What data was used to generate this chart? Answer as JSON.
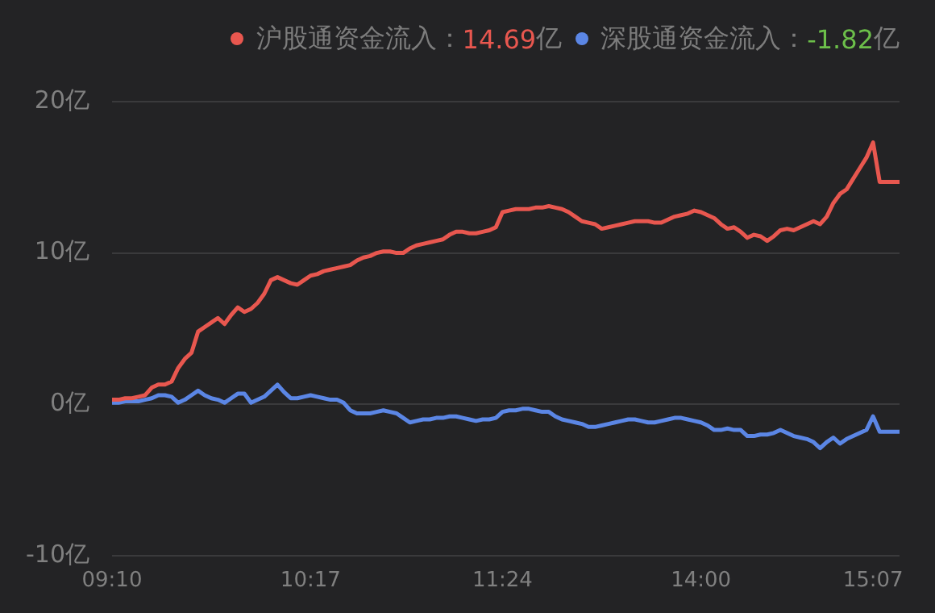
{
  "chart_data": {
    "type": "line",
    "categories": [
      "09:10",
      null,
      null,
      null,
      null,
      null,
      null,
      null,
      null,
      null,
      null,
      null,
      null,
      null,
      null,
      null,
      null,
      null,
      null,
      null,
      null,
      null,
      null,
      null,
      null,
      null,
      null,
      null,
      null,
      null,
      "10:17",
      null,
      null,
      null,
      null,
      null,
      null,
      null,
      null,
      null,
      null,
      null,
      null,
      null,
      null,
      null,
      null,
      null,
      null,
      null,
      null,
      null,
      null,
      null,
      null,
      null,
      null,
      null,
      null,
      "11:24",
      null,
      null,
      null,
      null,
      null,
      null,
      null,
      null,
      null,
      null,
      null,
      null,
      null,
      null,
      null,
      null,
      null,
      null,
      null,
      null,
      null,
      null,
      null,
      null,
      null,
      null,
      null,
      null,
      null,
      "14:00",
      null,
      null,
      null,
      null,
      null,
      null,
      null,
      null,
      null,
      null,
      null,
      null,
      null,
      null,
      null,
      null,
      null,
      null,
      null,
      null,
      null,
      null,
      null,
      null,
      null,
      "15:07",
      null,
      null,
      null,
      null
    ],
    "series": [
      {
        "name": "沪股通资金流入：",
        "color": "#e8574f",
        "values": [
          0.3,
          0.3,
          0.4,
          0.4,
          0.5,
          0.6,
          1.1,
          1.3,
          1.3,
          1.5,
          2.4,
          3.0,
          3.4,
          4.8,
          5.1,
          5.4,
          5.7,
          5.3,
          5.9,
          6.4,
          6.1,
          6.3,
          6.7,
          7.3,
          8.2,
          8.4,
          8.2,
          8.0,
          7.9,
          8.2,
          8.5,
          8.6,
          8.8,
          8.9,
          9.0,
          9.1,
          9.2,
          9.5,
          9.7,
          9.8,
          10.0,
          10.1,
          10.1,
          10.0,
          10.0,
          10.3,
          10.5,
          10.6,
          10.7,
          10.8,
          10.9,
          11.2,
          11.4,
          11.4,
          11.3,
          11.3,
          11.4,
          11.5,
          11.7,
          12.7,
          12.8,
          12.9,
          12.9,
          12.9,
          13.0,
          13.0,
          13.1,
          13.0,
          12.9,
          12.7,
          12.4,
          12.1,
          12.0,
          11.9,
          11.6,
          11.7,
          11.8,
          11.9,
          12.0,
          12.1,
          12.1,
          12.1,
          12.0,
          12.0,
          12.2,
          12.4,
          12.5,
          12.6,
          12.8,
          12.7,
          12.5,
          12.3,
          11.9,
          11.6,
          11.7,
          11.4,
          11.0,
          11.2,
          11.1,
          10.8,
          11.1,
          11.5,
          11.6,
          11.5,
          11.7,
          11.9,
          12.1,
          11.9,
          12.4,
          13.3,
          13.9,
          14.2,
          14.9,
          15.6,
          16.3,
          17.3,
          14.69,
          14.69,
          14.69,
          14.69
        ]
      },
      {
        "name": "深股通资金流入：",
        "color": "#5b86e5",
        "values": [
          0.1,
          0.1,
          0.2,
          0.2,
          0.2,
          0.3,
          0.4,
          0.6,
          0.6,
          0.5,
          0.1,
          0.3,
          0.6,
          0.9,
          0.6,
          0.4,
          0.3,
          0.1,
          0.4,
          0.7,
          0.7,
          0.1,
          0.3,
          0.5,
          0.9,
          1.3,
          0.8,
          0.4,
          0.4,
          0.5,
          0.6,
          0.5,
          0.4,
          0.3,
          0.3,
          0.1,
          -0.4,
          -0.6,
          -0.6,
          -0.6,
          -0.5,
          -0.4,
          -0.5,
          -0.6,
          -0.9,
          -1.2,
          -1.1,
          -1.0,
          -1.0,
          -0.9,
          -0.9,
          -0.8,
          -0.8,
          -0.9,
          -1.0,
          -1.1,
          -1.0,
          -1.0,
          -0.9,
          -0.5,
          -0.4,
          -0.4,
          -0.3,
          -0.3,
          -0.4,
          -0.5,
          -0.5,
          -0.8,
          -1.0,
          -1.1,
          -1.2,
          -1.3,
          -1.5,
          -1.5,
          -1.4,
          -1.3,
          -1.2,
          -1.1,
          -1.0,
          -1.0,
          -1.1,
          -1.2,
          -1.2,
          -1.1,
          -1.0,
          -0.9,
          -0.9,
          -1.0,
          -1.1,
          -1.2,
          -1.4,
          -1.7,
          -1.7,
          -1.6,
          -1.7,
          -1.7,
          -2.1,
          -2.1,
          -2.0,
          -2.0,
          -1.9,
          -1.7,
          -1.9,
          -2.1,
          -2.2,
          -2.3,
          -2.5,
          -2.9,
          -2.5,
          -2.2,
          -2.6,
          -2.3,
          -2.1,
          -1.9,
          -1.7,
          -0.8,
          -1.82,
          -1.82,
          -1.82,
          -1.82
        ]
      }
    ],
    "annotations": [
      "14.69亿",
      "-1.82亿"
    ],
    "ylim": [
      -10,
      20
    ],
    "yticks": [
      {
        "value": -10,
        "label": "-10亿"
      },
      {
        "value": 0,
        "label": "0亿"
      },
      {
        "value": 10,
        "label": "10亿"
      },
      {
        "value": 20,
        "label": "20亿"
      }
    ],
    "grid": "y",
    "legend": "top right",
    "marker": "none",
    "line_style": "solid"
  }
}
